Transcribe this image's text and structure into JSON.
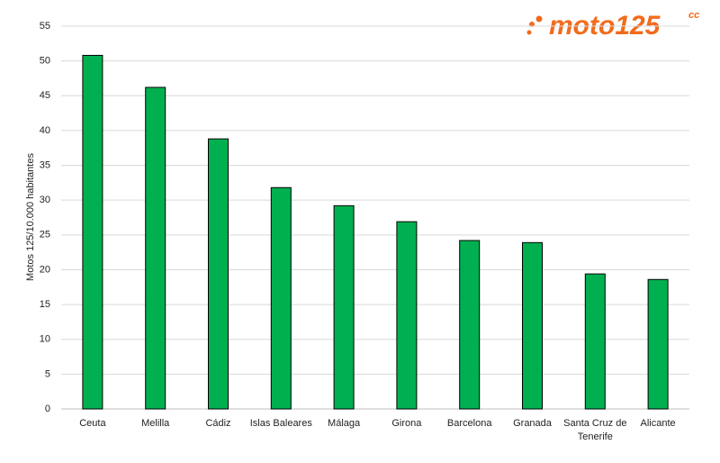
{
  "logo": {
    "text": "moto125",
    "sup": "cc"
  },
  "chart_data": {
    "type": "bar",
    "y_label": "Motos 125/10.000 habitantes",
    "categories": [
      "Ceuta",
      "Melilla",
      "Cádiz",
      "Islas Baleares",
      "Málaga",
      "Girona",
      "Barcelona",
      "Granada",
      "Santa Cruz de Tenerife",
      "Alicante"
    ],
    "values": [
      50.8,
      46.2,
      38.8,
      31.8,
      29.2,
      26.9,
      24.2,
      23.9,
      19.4,
      18.6
    ],
    "color": "#00b050",
    "ylim": [
      0,
      55
    ],
    "yticks": [
      0,
      5,
      10,
      15,
      20,
      25,
      30,
      35,
      40,
      45,
      50,
      55
    ],
    "grid": true
  }
}
